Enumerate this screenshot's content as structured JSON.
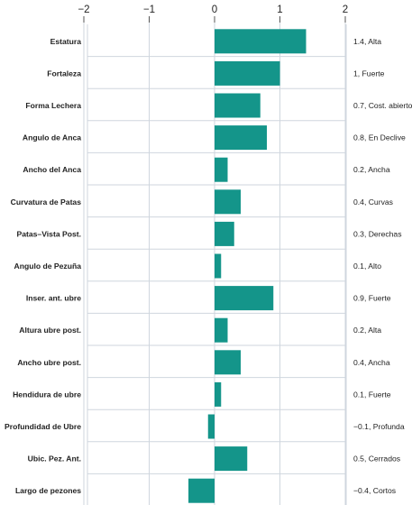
{
  "chart_data": {
    "type": "bar",
    "orientation": "horizontal",
    "title": "",
    "xlabel": "",
    "ylabel": "",
    "xlim": [
      -2,
      2
    ],
    "x_ticks": [
      -2,
      -1,
      0,
      1,
      2
    ],
    "x_tick_labels": [
      "−2",
      "−1",
      "0",
      "1",
      "2"
    ],
    "x_axis_position": "top",
    "grid": true,
    "legend": "none",
    "bar_color": "#14958a",
    "grid_color": "#cfd6de",
    "categories": [
      "Estatura",
      "Fortaleza",
      "Forma Lechera",
      "Angulo de Anca",
      "Ancho del Anca",
      "Curvatura de Patas",
      "Patas–Vista Post.",
      "Angulo de Pezuña",
      "Inser. ant. ubre",
      "Altura ubre post.",
      "Ancho ubre post.",
      "Hendidura de ubre",
      "Profundidad de Ubre",
      "Ubic. Pez. Ant.",
      "Largo de pezones"
    ],
    "values": [
      1.4,
      1,
      0.7,
      0.8,
      0.2,
      0.4,
      0.3,
      0.1,
      0.9,
      0.2,
      0.4,
      0.1,
      -0.1,
      0.5,
      -0.4
    ],
    "value_labels": [
      "1.4, Alta",
      "1, Fuerte",
      "0.7, Cost. abierto",
      "0.8, En Declive",
      "0.2, Ancha",
      "0.4, Curvas",
      "0.3, Derechas",
      "0.1, Alto",
      "0.9, Fuerte",
      "0.2, Alta",
      "0.4, Ancha",
      "0.1, Fuerte",
      "−0.1, Profunda",
      "0.5, Cerrados",
      "−0.4, Cortos"
    ]
  }
}
